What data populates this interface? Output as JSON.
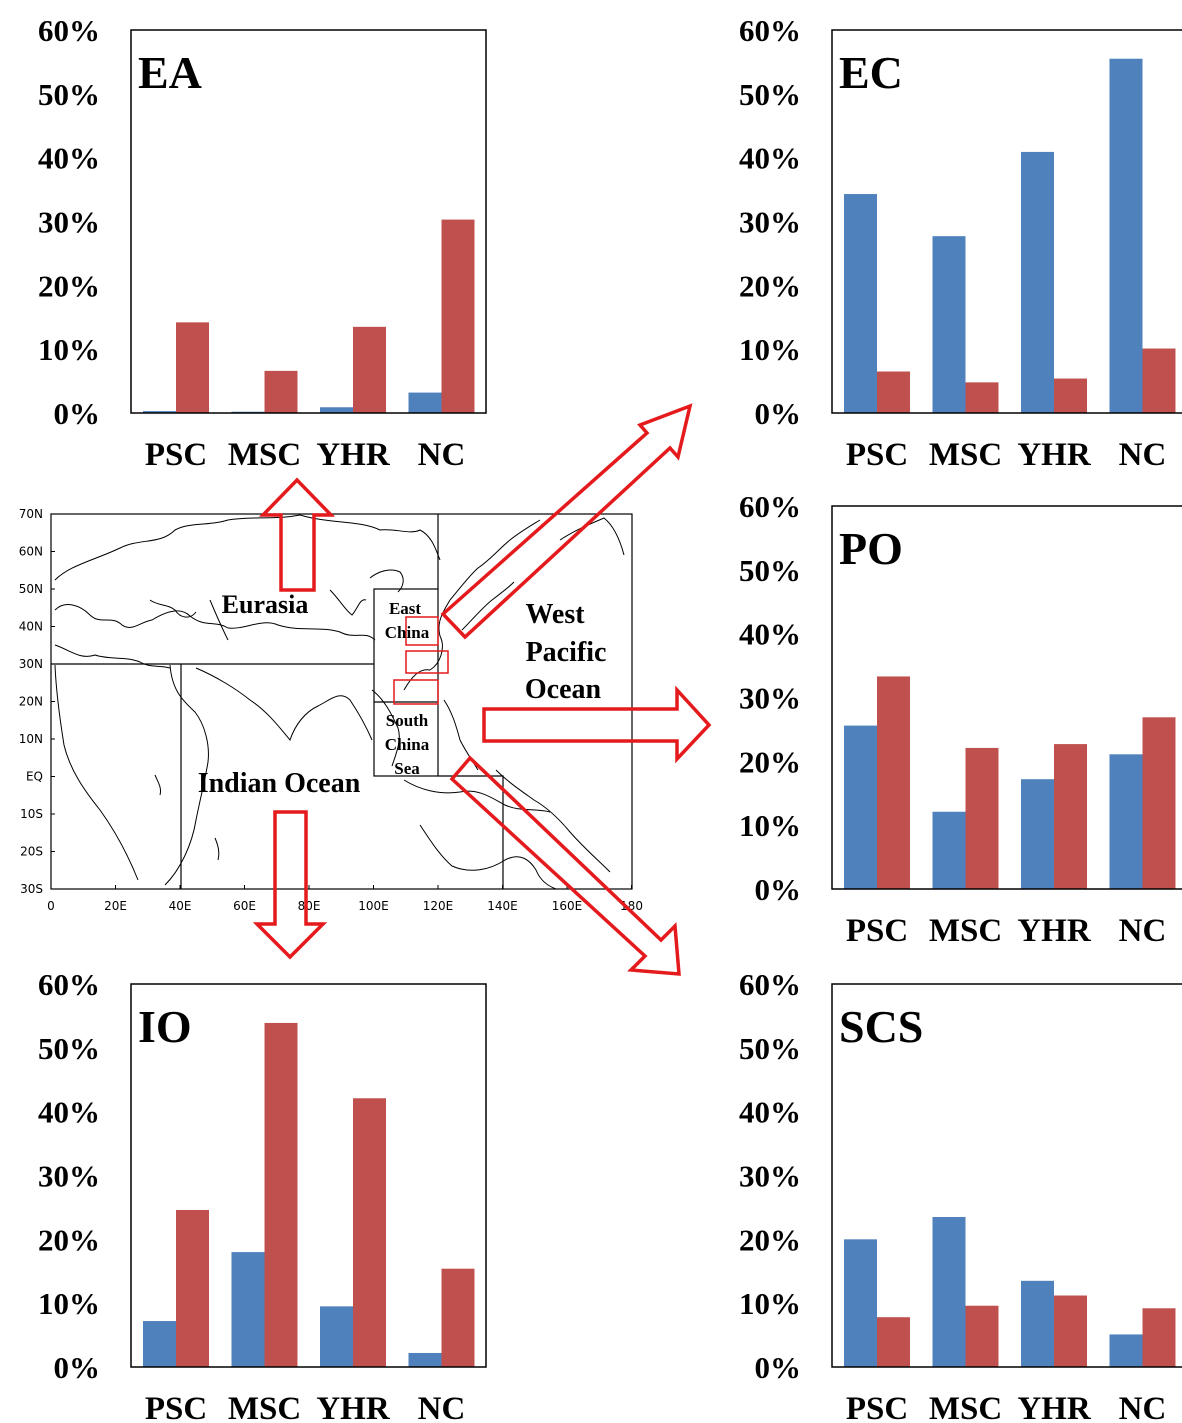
{
  "colors": {
    "series1": "#4f81bd",
    "series2": "#c0504d",
    "arrow": "#e41a1c",
    "frame": "#000000"
  },
  "y_tick_labels": [
    "0%",
    "10%",
    "20%",
    "30%",
    "40%",
    "50%",
    "60%"
  ],
  "map": {
    "region_labels": {
      "eurasia": "Eurasia",
      "east_china_1": "East",
      "east_china_2": "China",
      "west_pacific_1": "West",
      "west_pacific_2": "Pacific",
      "west_pacific_3": "Ocean",
      "south_china_sea_1": "South",
      "south_china_sea_2": "China",
      "south_china_sea_3": "Sea",
      "indian_ocean": "Indian Ocean"
    },
    "lat_labels": [
      "70N",
      "60N",
      "50N",
      "40N",
      "30N",
      "20N",
      "10N",
      "EQ",
      "10S",
      "20S",
      "30S"
    ],
    "lon_labels": [
      "0",
      "20E",
      "40E",
      "60E",
      "80E",
      "100E",
      "120E",
      "140E",
      "160E",
      "180"
    ]
  },
  "chart_data": [
    {
      "type": "bar",
      "title": "EA",
      "categories": [
        "PSC",
        "MSC",
        "YHR",
        "NC"
      ],
      "ylim": [
        0,
        60
      ],
      "series": [
        {
          "values": [
            0.3,
            0.2,
            0.9,
            3.2
          ]
        },
        {
          "values": [
            14.2,
            6.6,
            13.5,
            30.3
          ]
        }
      ]
    },
    {
      "type": "bar",
      "title": "EC",
      "categories": [
        "PSC",
        "MSC",
        "YHR",
        "NC"
      ],
      "ylim": [
        0,
        60
      ],
      "series": [
        {
          "values": [
            34.3,
            27.7,
            40.9,
            55.5
          ]
        },
        {
          "values": [
            6.5,
            4.8,
            5.4,
            10.1
          ]
        }
      ]
    },
    {
      "type": "bar",
      "title": "PO",
      "categories": [
        "PSC",
        "MSC",
        "YHR",
        "NC"
      ],
      "ylim": [
        0,
        60
      ],
      "series": [
        {
          "values": [
            25.6,
            12.1,
            17.2,
            21.1
          ]
        },
        {
          "values": [
            33.3,
            22.1,
            22.7,
            26.9
          ]
        }
      ]
    },
    {
      "type": "bar",
      "title": "IO",
      "categories": [
        "PSC",
        "MSC",
        "YHR",
        "NC"
      ],
      "ylim": [
        0,
        60
      ],
      "series": [
        {
          "values": [
            7.2,
            18.0,
            9.5,
            2.2
          ]
        },
        {
          "values": [
            24.6,
            53.9,
            42.1,
            15.4
          ]
        }
      ]
    },
    {
      "type": "bar",
      "title": "SCS",
      "categories": [
        "PSC",
        "MSC",
        "YHR",
        "NC"
      ],
      "ylim": [
        0,
        60
      ],
      "series": [
        {
          "values": [
            20.0,
            23.5,
            13.5,
            5.1
          ]
        },
        {
          "values": [
            7.8,
            9.6,
            11.2,
            9.2
          ]
        }
      ]
    }
  ]
}
